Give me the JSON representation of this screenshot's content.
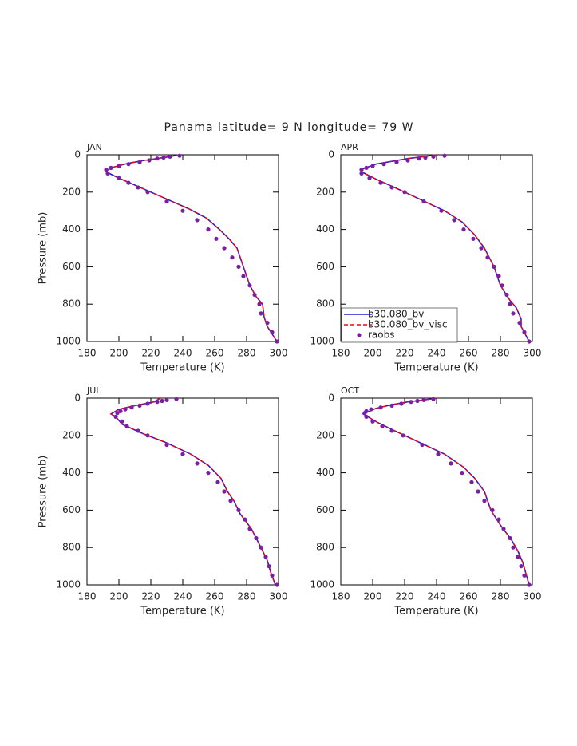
{
  "title": "Panama  latitude= 9 N longitude= 79 W",
  "chart_data": [
    {
      "type": "line",
      "label": "JAN",
      "xlabel": "Temperature (K)",
      "ylabel": "Pressure (mb)",
      "xlim": [
        180,
        300
      ],
      "xticks": [
        180,
        200,
        220,
        240,
        260,
        280,
        300
      ],
      "ylim": [
        1000,
        0
      ],
      "yticks": [
        0,
        200,
        400,
        600,
        800,
        1000
      ],
      "series": [
        {
          "color": "#2020d0",
          "style": "solid",
          "x": [
            238,
            232,
            224,
            216,
            206,
            197,
            192,
            194,
            200,
            212,
            228,
            244,
            255,
            263,
            269,
            274,
            278,
            282,
            286,
            290,
            291,
            293,
            299
          ],
          "values": [
            0,
            10,
            20,
            30,
            45,
            65,
            85,
            100,
            125,
            170,
            230,
            290,
            340,
            400,
            450,
            500,
            600,
            700,
            760,
            800,
            870,
            920,
            1000
          ]
        },
        {
          "color": "#ff0000",
          "style": "dashed",
          "x": [
            238,
            232,
            224,
            216,
            206,
            197,
            192,
            194,
            200,
            212,
            228,
            244,
            255,
            263,
            269,
            274,
            278,
            282,
            286,
            290,
            291,
            293,
            299
          ],
          "values": [
            0,
            10,
            20,
            30,
            45,
            65,
            85,
            100,
            125,
            170,
            230,
            290,
            340,
            400,
            450,
            500,
            600,
            700,
            760,
            800,
            870,
            920,
            1000
          ]
        },
        {
          "color": "#7b1fa2",
          "style": "dots",
          "x": [
            238,
            232,
            228,
            224,
            219,
            213,
            206,
            200,
            195,
            192,
            193,
            200,
            206,
            212,
            218,
            230,
            240,
            249,
            256,
            261,
            266,
            271,
            275,
            278,
            282,
            285,
            288,
            289,
            293,
            296,
            299
          ],
          "values": [
            5,
            10,
            15,
            20,
            30,
            40,
            50,
            60,
            70,
            80,
            100,
            125,
            150,
            175,
            200,
            250,
            300,
            350,
            400,
            450,
            500,
            550,
            600,
            650,
            700,
            750,
            800,
            850,
            900,
            950,
            1000
          ]
        }
      ]
    },
    {
      "type": "line",
      "label": "APR",
      "xlabel": "Temperature (K)",
      "legend": "lower left",
      "xlim": [
        180,
        300
      ],
      "xticks": [
        180,
        200,
        220,
        240,
        260,
        280,
        300
      ],
      "ylim": [
        1000,
        0
      ],
      "yticks": [
        0,
        200,
        400,
        600,
        800,
        1000
      ],
      "series": [
        {
          "name": "b30.080_bv",
          "color": "#2020d0",
          "style": "solid",
          "x": [
            240,
            232,
            222,
            212,
            202,
            194,
            193,
            195,
            202,
            215,
            230,
            245,
            256,
            264,
            270,
            276,
            280,
            286,
            290,
            293,
            293,
            298
          ],
          "values": [
            0,
            10,
            20,
            35,
            50,
            75,
            90,
            100,
            130,
            180,
            240,
            300,
            360,
            430,
            500,
            600,
            700,
            780,
            820,
            880,
            920,
            1000
          ]
        },
        {
          "name": "b30.080_bv_visc",
          "color": "#ff0000",
          "style": "dashed",
          "x": [
            240,
            232,
            222,
            212,
            202,
            194,
            193,
            195,
            202,
            215,
            230,
            245,
            256,
            264,
            270,
            276,
            280,
            286,
            290,
            293,
            293,
            298
          ],
          "values": [
            0,
            10,
            20,
            35,
            50,
            75,
            90,
            100,
            130,
            180,
            240,
            300,
            360,
            430,
            500,
            600,
            700,
            780,
            820,
            880,
            920,
            1000
          ]
        },
        {
          "name": "raobs",
          "color": "#7b1fa2",
          "style": "dots",
          "x": [
            245,
            238,
            233,
            229,
            222,
            215,
            207,
            200,
            196,
            193,
            193,
            198,
            205,
            212,
            220,
            232,
            243,
            251,
            257,
            263,
            268,
            272,
            276,
            279,
            281,
            284,
            286,
            288,
            292,
            295,
            298
          ],
          "values": [
            5,
            10,
            15,
            20,
            30,
            40,
            50,
            60,
            70,
            80,
            100,
            125,
            150,
            175,
            200,
            250,
            300,
            350,
            400,
            450,
            500,
            550,
            600,
            650,
            700,
            750,
            800,
            850,
            900,
            950,
            1000
          ]
        }
      ]
    },
    {
      "type": "line",
      "label": "JUL",
      "xlabel": "Temperature (K)",
      "ylabel": "Pressure (mb)",
      "xlim": [
        180,
        300
      ],
      "xticks": [
        180,
        200,
        220,
        240,
        260,
        280,
        300
      ],
      "ylim": [
        1000,
        0
      ],
      "yticks": [
        0,
        200,
        400,
        600,
        800,
        1000
      ],
      "series": [
        {
          "color": "#2020d0",
          "style": "solid",
          "x": [
            226,
            222,
            210,
            200,
            195,
            198,
            202,
            215,
            230,
            245,
            256,
            264,
            268,
            272,
            276,
            283,
            289,
            293,
            295,
            298
          ],
          "values": [
            0,
            20,
            40,
            60,
            85,
            100,
            140,
            190,
            240,
            300,
            360,
            430,
            500,
            550,
            620,
            700,
            800,
            870,
            930,
            1000
          ]
        },
        {
          "color": "#ff0000",
          "style": "dashed",
          "x": [
            226,
            222,
            210,
            200,
            195,
            198,
            202,
            215,
            230,
            245,
            256,
            264,
            268,
            272,
            276,
            283,
            289,
            293,
            295,
            298
          ],
          "values": [
            0,
            20,
            40,
            60,
            85,
            100,
            140,
            190,
            240,
            300,
            360,
            430,
            500,
            550,
            620,
            700,
            800,
            870,
            930,
            1000
          ]
        },
        {
          "color": "#7b1fa2",
          "style": "dots",
          "x": [
            236,
            230,
            227,
            224,
            218,
            213,
            208,
            204,
            201,
            199,
            198,
            202,
            205,
            212,
            218,
            230,
            240,
            249,
            256,
            262,
            266,
            270,
            275,
            279,
            282,
            286,
            289,
            292,
            294,
            296,
            299
          ],
          "values": [
            5,
            10,
            15,
            20,
            30,
            40,
            50,
            60,
            70,
            80,
            100,
            125,
            150,
            175,
            200,
            250,
            300,
            350,
            400,
            450,
            500,
            550,
            600,
            650,
            700,
            750,
            800,
            850,
            900,
            950,
            1000
          ]
        }
      ]
    },
    {
      "type": "line",
      "label": "OCT",
      "xlabel": "Temperature (K)",
      "xlim": [
        180,
        300
      ],
      "xticks": [
        180,
        200,
        220,
        240,
        260,
        280,
        300
      ],
      "ylim": [
        1000,
        0
      ],
      "yticks": [
        0,
        200,
        400,
        600,
        800,
        1000
      ],
      "series": [
        {
          "color": "#2020d0",
          "style": "solid",
          "x": [
            240,
            232,
            222,
            212,
            202,
            194,
            197,
            203,
            215,
            230,
            245,
            257,
            264,
            270,
            274,
            280,
            287,
            291,
            294,
            296,
            298
          ],
          "values": [
            0,
            10,
            20,
            35,
            55,
            85,
            100,
            130,
            180,
            240,
            300,
            370,
            430,
            500,
            600,
            680,
            760,
            820,
            880,
            940,
            1000
          ]
        },
        {
          "color": "#ff0000",
          "style": "dashed",
          "x": [
            240,
            232,
            222,
            212,
            202,
            194,
            197,
            203,
            215,
            230,
            245,
            257,
            264,
            270,
            274,
            280,
            287,
            291,
            294,
            296,
            298
          ],
          "values": [
            0,
            10,
            20,
            35,
            55,
            85,
            100,
            130,
            180,
            240,
            300,
            370,
            430,
            500,
            600,
            680,
            760,
            820,
            880,
            940,
            1000
          ]
        },
        {
          "color": "#7b1fa2",
          "style": "dots",
          "x": [
            238,
            232,
            228,
            224,
            218,
            212,
            205,
            199,
            196,
            195,
            196,
            200,
            206,
            212,
            219,
            231,
            241,
            249,
            256,
            262,
            266,
            270,
            275,
            279,
            282,
            286,
            288,
            291,
            293,
            295,
            298
          ],
          "values": [
            5,
            10,
            15,
            20,
            30,
            40,
            50,
            60,
            70,
            80,
            100,
            125,
            150,
            175,
            200,
            250,
            300,
            350,
            400,
            450,
            500,
            550,
            600,
            650,
            700,
            750,
            800,
            850,
            900,
            950,
            1000
          ]
        }
      ]
    }
  ]
}
